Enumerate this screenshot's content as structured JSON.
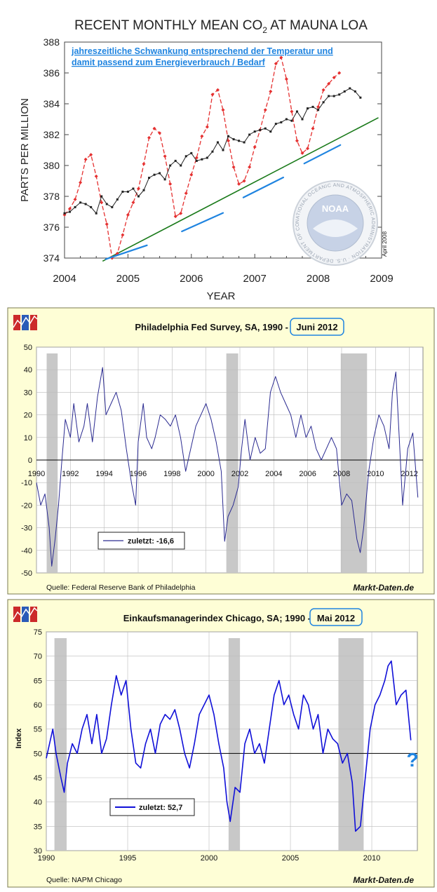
{
  "colors": {
    "co2_monthly": "#e53030",
    "co2_trend_line": "#222222",
    "co2_baseline": "#1a7a1a",
    "annotation_blue": "#1f84e0",
    "panel_bg": "#fefed6",
    "panel_border": "#7a7a50",
    "phil_line": "#2a2a90",
    "chicago_line": "#1010d8",
    "recession": "#c8c8c8"
  },
  "chart_data": [
    {
      "type": "line",
      "title": "RECENT MONTHLY MEAN CO",
      "title_subscript": "2",
      "title_suffix": " AT MAUNA LOA",
      "xlabel": "YEAR",
      "ylabel": "PARTS PER MILLION",
      "xlim": [
        2004,
        2009
      ],
      "ylim": [
        374,
        388
      ],
      "x_ticks": [
        "2004",
        "2005",
        "2006",
        "2007",
        "2008",
        "2009"
      ],
      "y_ticks": [
        "374",
        "376",
        "378",
        "380",
        "382",
        "384",
        "386",
        "388"
      ],
      "annotation_lines": [
        "jahreszeitliche Schwankung entsprechend der Temperatur und",
        "damit passend zum Energieverbrauch / Bedarf"
      ],
      "logo_text": "NOAA",
      "logo_ring_text": "NATIONAL OCEANIC AND ATMOSPHERIC ADMINISTRATION · U.S. DEPARTMENT OF COMMERCE ·",
      "date_note": "April 2008",
      "series": [
        {
          "name": "Monthly mean",
          "start": 2004.0,
          "step": 0.08333,
          "values": [
            376.8,
            377.2,
            377.8,
            378.9,
            380.4,
            380.7,
            379.3,
            377.6,
            376.2,
            374.0,
            374.3,
            375.5,
            376.8,
            377.6,
            378.5,
            380.1,
            381.8,
            382.4,
            382.1,
            380.6,
            378.8,
            376.7,
            376.9,
            378.2,
            379.4,
            380.5,
            381.9,
            382.5,
            384.6,
            384.9,
            383.6,
            381.6,
            379.9,
            378.8,
            379.0,
            379.9,
            381.2,
            382.3,
            383.6,
            384.8,
            386.6,
            387.0,
            385.6,
            383.5,
            381.6,
            380.8,
            381.1,
            382.4,
            383.8,
            384.9,
            385.3,
            385.7,
            386.0
          ]
        },
        {
          "name": "Trend",
          "start": 2004.0,
          "step": 0.08333,
          "values": [
            376.9,
            377.0,
            377.3,
            377.6,
            377.5,
            377.3,
            376.9,
            378.0,
            377.5,
            377.3,
            377.8,
            378.3,
            378.3,
            378.5,
            378.0,
            378.4,
            379.2,
            379.4,
            379.5,
            379.1,
            380.0,
            380.3,
            380.0,
            380.6,
            380.8,
            380.3,
            380.4,
            380.5,
            380.9,
            381.5,
            381.0,
            381.9,
            381.7,
            381.6,
            381.5,
            382.0,
            382.2,
            382.3,
            382.4,
            382.2,
            382.7,
            382.8,
            383.0,
            382.9,
            383.5,
            383.0,
            383.7,
            383.8,
            383.6,
            384.1,
            384.5,
            384.5,
            384.6,
            384.8,
            385.0,
            384.8,
            384.4
          ]
        },
        {
          "name": "Baseline",
          "x": [
            2004.6,
            2008.95
          ],
          "values": [
            373.8,
            383.1
          ]
        }
      ],
      "annotation_marks": [
        {
          "x": [
            2004.65,
            2005.3
          ],
          "y": [
            374.2,
            375.1
          ]
        },
        {
          "x": [
            2005.85,
            2006.5
          ],
          "y": [
            376.0,
            377.2
          ]
        },
        {
          "x": [
            2006.82,
            2007.45
          ],
          "y": [
            378.2,
            379.5
          ]
        },
        {
          "x": [
            2007.78,
            2008.35
          ],
          "y": [
            380.4,
            381.6
          ]
        }
      ]
    },
    {
      "type": "line",
      "title_main": "Philadelphia Fed Survey, SA, 1990 - ",
      "title_highlight": "Juni 2012",
      "xlim": [
        1990,
        2012.8
      ],
      "ylim": [
        -50,
        50
      ],
      "y_ticks": [
        "50",
        "40",
        "30",
        "20",
        "10",
        "0",
        "-10",
        "-20",
        "-30",
        "-40",
        "-50"
      ],
      "x_ticks": [
        "1990",
        "1992",
        "1994",
        "1996",
        "1998",
        "2000",
        "2002",
        "2004",
        "2006",
        "2008",
        "2010",
        "2012"
      ],
      "legend": "zuletzt: -16,6",
      "source": "Quelle: Federal Reserve Bank of Philadelphia",
      "brand": "Markt-Daten.de",
      "recessions": [
        [
          1990.6,
          1991.25
        ],
        [
          2001.2,
          2001.9
        ],
        [
          2007.95,
          2009.5
        ]
      ],
      "points": [
        [
          1990.0,
          -10
        ],
        [
          1990.25,
          -20
        ],
        [
          1990.5,
          -15
        ],
        [
          1990.75,
          -30
        ],
        [
          1990.9,
          -47
        ],
        [
          1991.1,
          -35
        ],
        [
          1991.3,
          -20
        ],
        [
          1991.5,
          0
        ],
        [
          1991.7,
          18
        ],
        [
          1992.0,
          10
        ],
        [
          1992.2,
          25
        ],
        [
          1992.5,
          8
        ],
        [
          1992.8,
          15
        ],
        [
          1993.0,
          25
        ],
        [
          1993.3,
          8
        ],
        [
          1993.6,
          28
        ],
        [
          1993.9,
          41
        ],
        [
          1994.1,
          20
        ],
        [
          1994.4,
          25
        ],
        [
          1994.7,
          30
        ],
        [
          1995.0,
          22
        ],
        [
          1995.3,
          5
        ],
        [
          1995.6,
          -10
        ],
        [
          1995.85,
          -20
        ],
        [
          1996.0,
          8
        ],
        [
          1996.3,
          25
        ],
        [
          1996.5,
          10
        ],
        [
          1996.8,
          5
        ],
        [
          1997.0,
          10
        ],
        [
          1997.3,
          20
        ],
        [
          1997.6,
          18
        ],
        [
          1997.9,
          15
        ],
        [
          1998.2,
          20
        ],
        [
          1998.5,
          10
        ],
        [
          1998.8,
          -5
        ],
        [
          1999.1,
          5
        ],
        [
          1999.4,
          15
        ],
        [
          1999.7,
          20
        ],
        [
          2000.0,
          25
        ],
        [
          2000.3,
          18
        ],
        [
          2000.6,
          8
        ],
        [
          2000.9,
          -5
        ],
        [
          2001.1,
          -36
        ],
        [
          2001.3,
          -25
        ],
        [
          2001.6,
          -20
        ],
        [
          2001.9,
          -12
        ],
        [
          2002.1,
          5
        ],
        [
          2002.3,
          18
        ],
        [
          2002.6,
          0
        ],
        [
          2002.9,
          10
        ],
        [
          2003.2,
          3
        ],
        [
          2003.5,
          5
        ],
        [
          2003.8,
          30
        ],
        [
          2004.1,
          37
        ],
        [
          2004.4,
          30
        ],
        [
          2004.7,
          25
        ],
        [
          2005.0,
          20
        ],
        [
          2005.3,
          10
        ],
        [
          2005.6,
          20
        ],
        [
          2005.9,
          10
        ],
        [
          2006.2,
          15
        ],
        [
          2006.5,
          5
        ],
        [
          2006.8,
          0
        ],
        [
          2007.1,
          5
        ],
        [
          2007.4,
          10
        ],
        [
          2007.7,
          5
        ],
        [
          2008.0,
          -20
        ],
        [
          2008.3,
          -15
        ],
        [
          2008.6,
          -18
        ],
        [
          2008.9,
          -35
        ],
        [
          2009.1,
          -41
        ],
        [
          2009.3,
          -30
        ],
        [
          2009.6,
          -5
        ],
        [
          2009.9,
          10
        ],
        [
          2010.2,
          20
        ],
        [
          2010.5,
          15
        ],
        [
          2010.8,
          5
        ],
        [
          2011.0,
          30
        ],
        [
          2011.2,
          39
        ],
        [
          2011.4,
          10
        ],
        [
          2011.6,
          -20
        ],
        [
          2011.9,
          5
        ],
        [
          2012.2,
          12
        ],
        [
          2012.5,
          -16.6
        ]
      ]
    },
    {
      "type": "line",
      "title_main": "Einkaufsmanagerindex Chicago, SA; 1990 - ",
      "title_highlight": "Mai 2012",
      "ylabel": "Index",
      "xlim": [
        1990,
        2012.8
      ],
      "ylim": [
        30,
        75
      ],
      "y_ticks": [
        "75",
        "70",
        "65",
        "60",
        "55",
        "50",
        "45",
        "40",
        "35",
        "30"
      ],
      "x_ticks": [
        "1990",
        "1995",
        "2000",
        "2005",
        "2010"
      ],
      "legend": "zuletzt: 52,7",
      "question_mark": "?",
      "source": "Quelle: NAPM Chicago",
      "brand": "Markt-Daten.de",
      "recessions": [
        [
          1990.5,
          1991.25
        ],
        [
          2001.2,
          2001.9
        ],
        [
          2007.95,
          2009.5
        ]
      ],
      "points": [
        [
          1990.0,
          49
        ],
        [
          1990.2,
          52
        ],
        [
          1990.4,
          55
        ],
        [
          1990.6,
          50
        ],
        [
          1990.9,
          45
        ],
        [
          1991.1,
          42
        ],
        [
          1991.3,
          48
        ],
        [
          1991.6,
          52
        ],
        [
          1991.9,
          50
        ],
        [
          1992.2,
          55
        ],
        [
          1992.5,
          58
        ],
        [
          1992.8,
          52
        ],
        [
          1993.1,
          58
        ],
        [
          1993.4,
          50
        ],
        [
          1993.7,
          53
        ],
        [
          1994.0,
          60
        ],
        [
          1994.3,
          66
        ],
        [
          1994.6,
          62
        ],
        [
          1994.9,
          65
        ],
        [
          1995.2,
          55
        ],
        [
          1995.5,
          48
        ],
        [
          1995.8,
          47
        ],
        [
          1996.1,
          52
        ],
        [
          1996.4,
          55
        ],
        [
          1996.7,
          50
        ],
        [
          1997.0,
          56
        ],
        [
          1997.3,
          58
        ],
        [
          1997.6,
          57
        ],
        [
          1997.9,
          59
        ],
        [
          1998.2,
          55
        ],
        [
          1998.5,
          50
        ],
        [
          1998.8,
          47
        ],
        [
          1999.1,
          52
        ],
        [
          1999.4,
          58
        ],
        [
          1999.7,
          60
        ],
        [
          2000.0,
          62
        ],
        [
          2000.3,
          58
        ],
        [
          2000.6,
          52
        ],
        [
          2000.9,
          47
        ],
        [
          2001.1,
          40
        ],
        [
          2001.3,
          36
        ],
        [
          2001.6,
          43
        ],
        [
          2001.9,
          42
        ],
        [
          2002.2,
          52
        ],
        [
          2002.5,
          55
        ],
        [
          2002.8,
          50
        ],
        [
          2003.1,
          52
        ],
        [
          2003.4,
          48
        ],
        [
          2003.7,
          55
        ],
        [
          2004.0,
          62
        ],
        [
          2004.3,
          65
        ],
        [
          2004.6,
          60
        ],
        [
          2004.9,
          62
        ],
        [
          2005.2,
          58
        ],
        [
          2005.5,
          55
        ],
        [
          2005.8,
          62
        ],
        [
          2006.1,
          60
        ],
        [
          2006.4,
          55
        ],
        [
          2006.7,
          58
        ],
        [
          2007.0,
          50
        ],
        [
          2007.3,
          55
        ],
        [
          2007.6,
          53
        ],
        [
          2007.9,
          52
        ],
        [
          2008.2,
          48
        ],
        [
          2008.5,
          50
        ],
        [
          2008.8,
          44
        ],
        [
          2009.0,
          34
        ],
        [
          2009.3,
          35
        ],
        [
          2009.6,
          45
        ],
        [
          2009.9,
          55
        ],
        [
          2010.2,
          60
        ],
        [
          2010.5,
          62
        ],
        [
          2010.8,
          65
        ],
        [
          2011.0,
          68
        ],
        [
          2011.2,
          69
        ],
        [
          2011.5,
          60
        ],
        [
          2011.8,
          62
        ],
        [
          2012.1,
          63
        ],
        [
          2012.4,
          52.7
        ]
      ]
    }
  ]
}
